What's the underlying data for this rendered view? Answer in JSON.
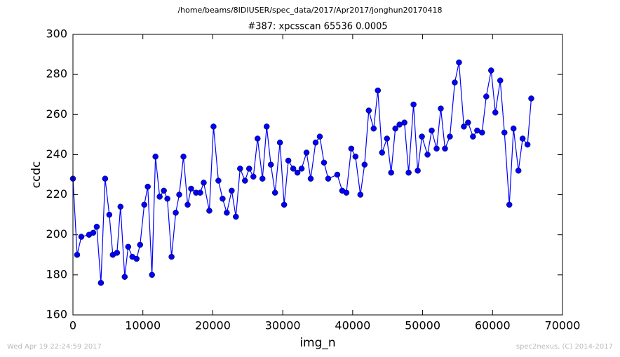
{
  "chart_data": {
    "type": "line",
    "suptitle": "/home/beams/8IDIUSER/spec_data/2017/Apr2017/jonghun20170418",
    "title": "#387: xpcsscan 65536 0.0005",
    "xlabel": "img_n",
    "ylabel": "ccdc",
    "footer_left": "Wed Apr 19 22:24:59 2017",
    "footer_right": "spec2nexus, (C) 2014-2017",
    "xlim": [
      0,
      70000
    ],
    "xticks": [
      0,
      10000,
      20000,
      30000,
      40000,
      50000,
      60000,
      70000
    ],
    "ylim": [
      160,
      300
    ],
    "yticks": [
      160,
      180,
      200,
      220,
      240,
      260,
      280,
      300
    ],
    "grid": false,
    "x": [
      0,
      600,
      1200,
      2300,
      2900,
      3400,
      4000,
      4600,
      5200,
      5700,
      6300,
      6800,
      7400,
      7900,
      8500,
      9100,
      9600,
      10200,
      10700,
      11300,
      11800,
      12400,
      13000,
      13500,
      14100,
      14700,
      15200,
      15800,
      16400,
      16900,
      17600,
      18200,
      18700,
      19500,
      20100,
      20800,
      21400,
      22000,
      22700,
      23300,
      23900,
      24600,
      25200,
      25800,
      26400,
      27100,
      27700,
      28300,
      28900,
      29600,
      30200,
      30800,
      31500,
      32100,
      32700,
      33400,
      34000,
      34700,
      35300,
      35900,
      36500,
      37800,
      38500,
      39100,
      39800,
      40400,
      41100,
      41700,
      42300,
      43000,
      43600,
      44200,
      44900,
      45500,
      46100,
      46700,
      47400,
      48000,
      48700,
      49300,
      49900,
      50700,
      51300,
      52000,
      52600,
      53200,
      53900,
      54600,
      55200,
      55900,
      56500,
      57200,
      57800,
      58500,
      59100,
      59800,
      60400,
      61100,
      61700,
      62400,
      63000,
      63700,
      64300,
      65000,
      65536
    ],
    "series": [
      {
        "name": "ccdc",
        "color": "#0000ff",
        "values": [
          228,
          190,
          199,
          200,
          201,
          204,
          176,
          228,
          210,
          190,
          191,
          214,
          179,
          194,
          189,
          188,
          195,
          215,
          224,
          180,
          239,
          219,
          222,
          218,
          189,
          211,
          220,
          239,
          215,
          223,
          221,
          221,
          226,
          212,
          254,
          227,
          218,
          211,
          222,
          209,
          233,
          227,
          233,
          229,
          248,
          228,
          254,
          235,
          221,
          246,
          215,
          237,
          233,
          231,
          233,
          241,
          228,
          246,
          249,
          236,
          228,
          230,
          222,
          221,
          243,
          239,
          220,
          235,
          262,
          253,
          272,
          241,
          248,
          231,
          253,
          255,
          256,
          231,
          265,
          232,
          249,
          240,
          252,
          243,
          263,
          243,
          249,
          276,
          286,
          254,
          256,
          249,
          252,
          251,
          269,
          282,
          261,
          277,
          251,
          215,
          253,
          232,
          248,
          245,
          268
        ]
      }
    ]
  }
}
